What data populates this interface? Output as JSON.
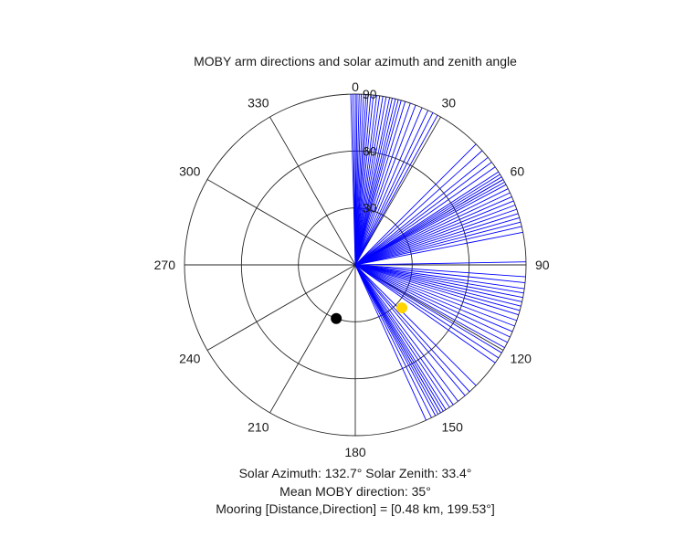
{
  "chart_data": {
    "type": "polar",
    "title": "MOBY arm directions and solar azimuth and zenith angle",
    "theta_zero": "top",
    "theta_direction": "clockwise",
    "theta_ticks": [
      "0",
      "30",
      "60",
      "90",
      "120",
      "150",
      "180",
      "210",
      "240",
      "270",
      "300",
      "330"
    ],
    "r_ticks": [
      "30",
      "60",
      "90"
    ],
    "r_max": 90,
    "grid": true,
    "series": [
      {
        "color": "#0000ff",
        "angles_deg": [
          -1.5,
          -0.8,
          0,
          0.6,
          1.3,
          2,
          2.8,
          3.6,
          4.3,
          5.2,
          6.1,
          7.2,
          8.2,
          9.3,
          10.4,
          11.6,
          12.5,
          13.6,
          14.6,
          15.6,
          17,
          18.8,
          20.7,
          23,
          25.2,
          27,
          28.8,
          45,
          48,
          51,
          53,
          55,
          57,
          58,
          59,
          60,
          61,
          62,
          63.5,
          65,
          66.5,
          68,
          69.5,
          71,
          72.5,
          74,
          75.5,
          77,
          79,
          89,
          94,
          96,
          98,
          99.5,
          101,
          102.5,
          104,
          105.5,
          107,
          109,
          111,
          113,
          115,
          117,
          119,
          121,
          123,
          125,
          135,
          138,
          140,
          143,
          145,
          146.5,
          148,
          149,
          150,
          151,
          152,
          153.5,
          155.5
        ],
        "r": 90
      }
    ],
    "markers": [
      {
        "theta": 132.7,
        "r": 33.4,
        "color": "#ffd400"
      },
      {
        "theta": 199.53,
        "r": 30,
        "color": "#000000"
      }
    ],
    "captions": [
      "Solar Azimuth: 132.7°   Solar Zenith: 33.4°",
      "Mean MOBY direction: 35°",
      "Mooring [Distance,Direction] = [0.48 km, 199.53°]"
    ]
  }
}
